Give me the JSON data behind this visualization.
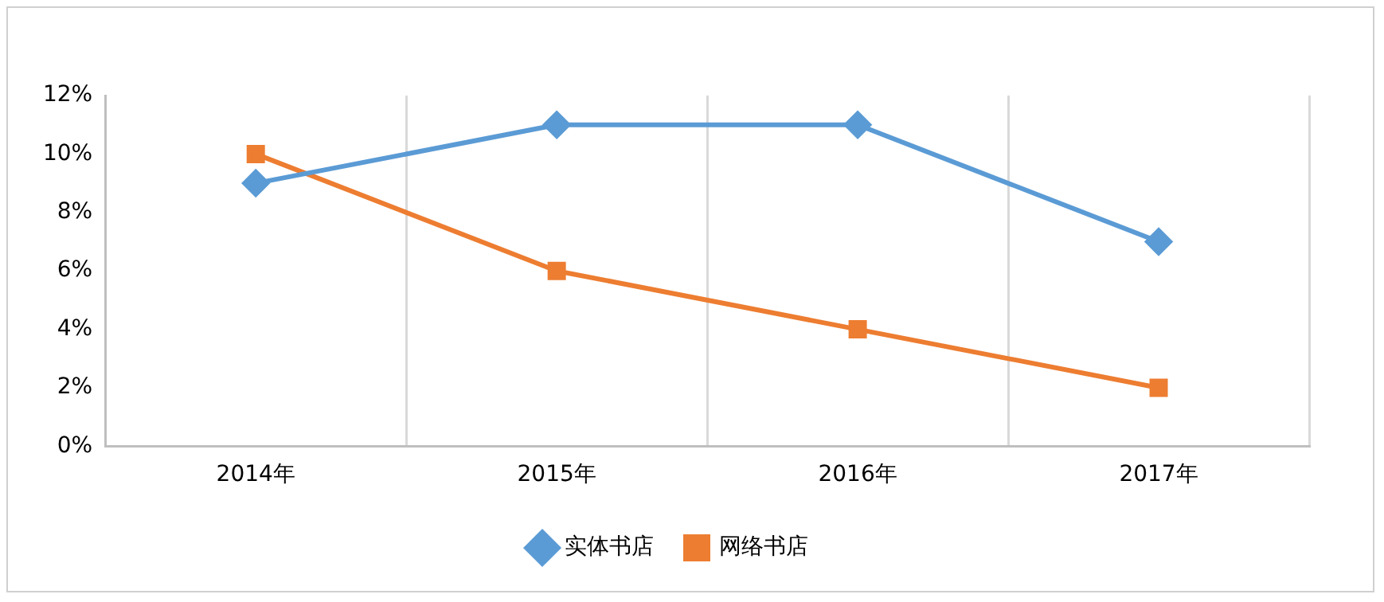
{
  "chart_data": {
    "type": "line",
    "categories": [
      "2014年",
      "2015年",
      "2016年",
      "2017年"
    ],
    "series": [
      {
        "name": "实体书店",
        "color": "#5b9bd5",
        "marker": "diamond",
        "values": [
          9,
          11,
          11,
          7
        ]
      },
      {
        "name": "网络书店",
        "color": "#ed7d31",
        "marker": "square",
        "values": [
          10,
          6,
          4,
          2
        ]
      }
    ],
    "ylim": [
      0,
      12
    ],
    "yticks": [
      {
        "value": 0,
        "label": "0%"
      },
      {
        "value": 2,
        "label": "2%"
      },
      {
        "value": 4,
        "label": "4%"
      },
      {
        "value": 6,
        "label": "6%"
      },
      {
        "value": 8,
        "label": "8%"
      },
      {
        "value": 10,
        "label": "10%"
      },
      {
        "value": 12,
        "label": "12%"
      }
    ],
    "grid": "x",
    "legend": "bottom",
    "line_style": "solid"
  }
}
